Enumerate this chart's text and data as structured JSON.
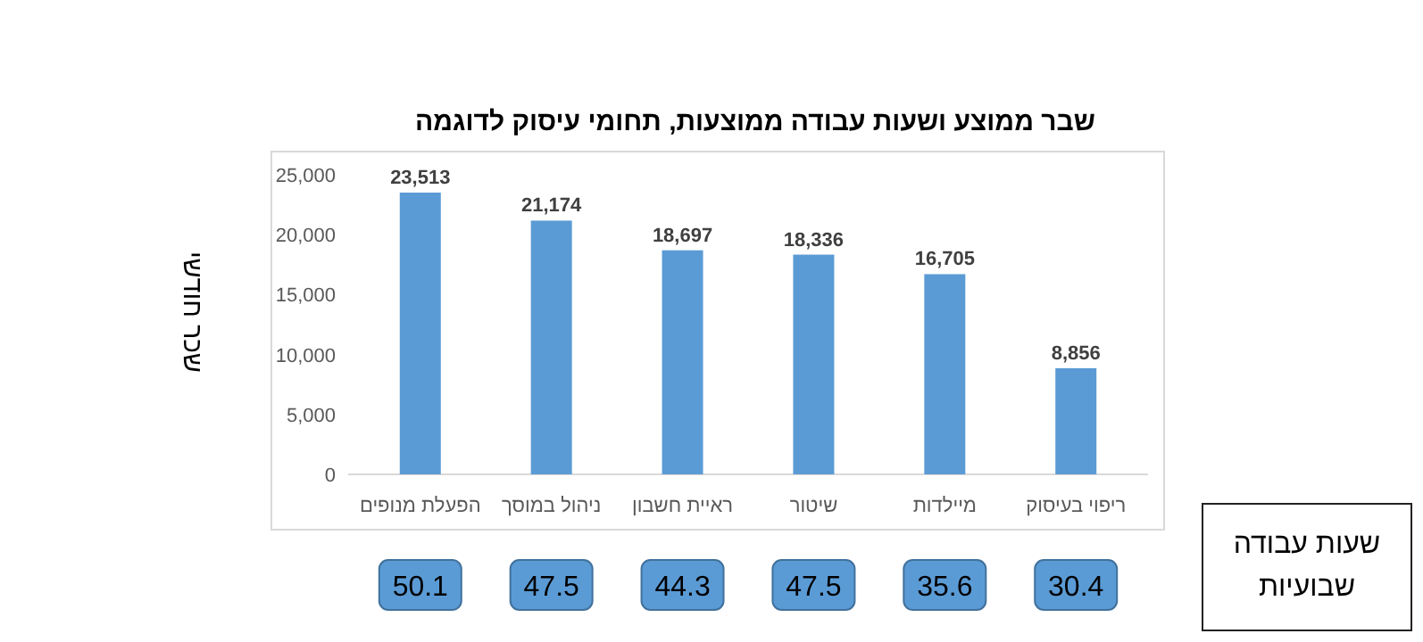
{
  "chart_data": {
    "type": "bar",
    "title": "שבר ממוצע ושעות עבודה ממוצעות, תחומי עיסוק לדוגמה",
    "ylabel": "שכר חודשי",
    "categories": [
      "הפעלת מנופים",
      "ניהול במוסך",
      "ראיית חשבון",
      "שיטור",
      "מיילדות",
      "ריפוי בעיסוק"
    ],
    "values": [
      23513,
      21174,
      18697,
      18336,
      16705,
      8856
    ],
    "value_labels": [
      "23,513",
      "21,174",
      "18,697",
      "18,336",
      "16,705",
      "8,856"
    ],
    "color": "#5b9bd5",
    "ylim": [
      0,
      25000
    ],
    "yticks": [
      0,
      {
        "value": 5000,
        "label": "5,000"
      },
      {
        "value": 10000,
        "label": "10,000"
      },
      {
        "value": 15000,
        "label": "15,000"
      },
      {
        "value": 20000,
        "label": "20,000"
      },
      {
        "value": 25000,
        "label": "25,000"
      }
    ],
    "annotations": [
      "50.1",
      "47.5",
      "44.3",
      "47.5",
      "35.6",
      "30.4",
      "שעות עבודה שבועיות"
    ]
  }
}
